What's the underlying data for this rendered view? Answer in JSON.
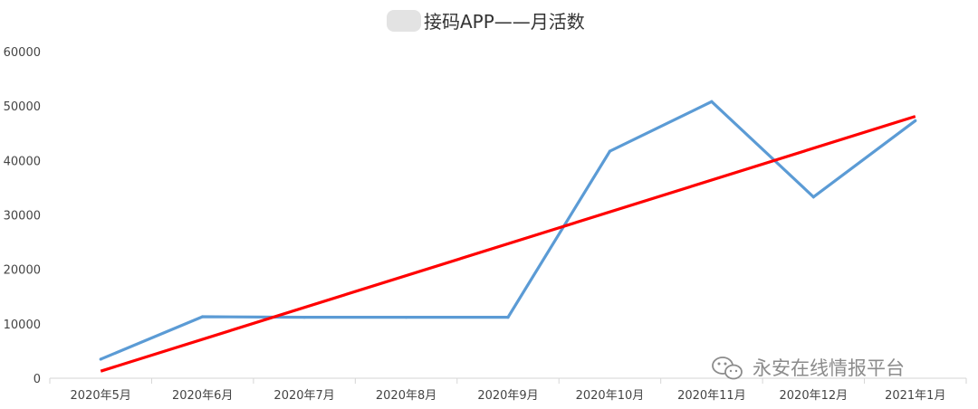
{
  "chart_data": {
    "type": "line",
    "title": "接码APP——月活数",
    "categories": [
      "2020年5月",
      "2020年6月",
      "2020年7月",
      "2020年8月",
      "2020年9月",
      "2020年10月",
      "2020年11月",
      "2020年12月",
      "2021年1月"
    ],
    "series": [
      {
        "values": [
          3500,
          11300,
          11200,
          11200,
          11200,
          41700,
          50800,
          33300,
          47300
        ],
        "color": "#5b9bd5"
      }
    ],
    "trendline": {
      "values": [
        1300,
        7150,
        13000,
        18850,
        24700,
        30550,
        36400,
        42250,
        48100
      ],
      "color": "#ff0000"
    },
    "ylim": [
      0,
      60000
    ],
    "yticks": [
      "0",
      "10000",
      "20000",
      "30000",
      "40000",
      "50000",
      "60000"
    ],
    "grid": false
  },
  "watermark": {
    "text": "永安在线情报平台",
    "icon": "wechat-icon"
  }
}
